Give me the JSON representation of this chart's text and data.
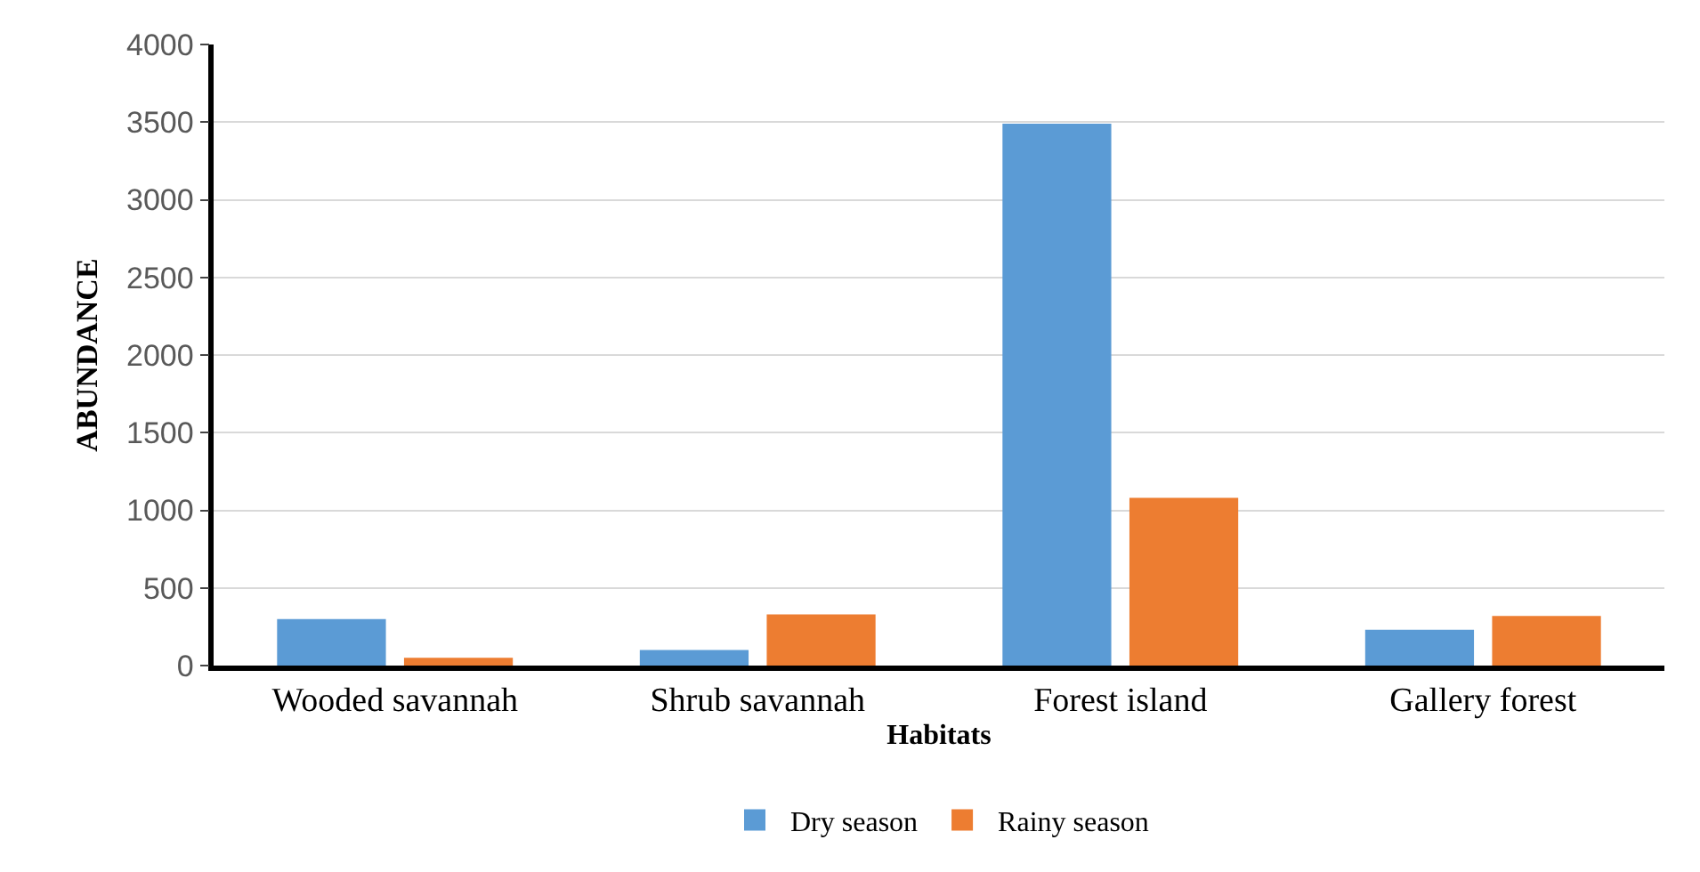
{
  "chart_data": {
    "type": "bar",
    "xlabel": "Habitats",
    "ylabel": "ABUNDANCE",
    "categories": [
      "Wooded savannah",
      "Shrub savannah",
      "Forest island",
      "Gallery forest"
    ],
    "series": [
      {
        "name": "Dry season",
        "color": "#5b9bd5",
        "values": [
          300,
          100,
          3490,
          230
        ]
      },
      {
        "name": "Rainy season",
        "color": "#ed7d31",
        "values": [
          50,
          330,
          1080,
          320
        ]
      }
    ],
    "ylim": [
      0,
      4000
    ],
    "yticks": [
      0,
      500,
      1000,
      1500,
      2000,
      2500,
      3000,
      3500,
      4000
    ],
    "grid": "y",
    "legend": "bottom"
  }
}
